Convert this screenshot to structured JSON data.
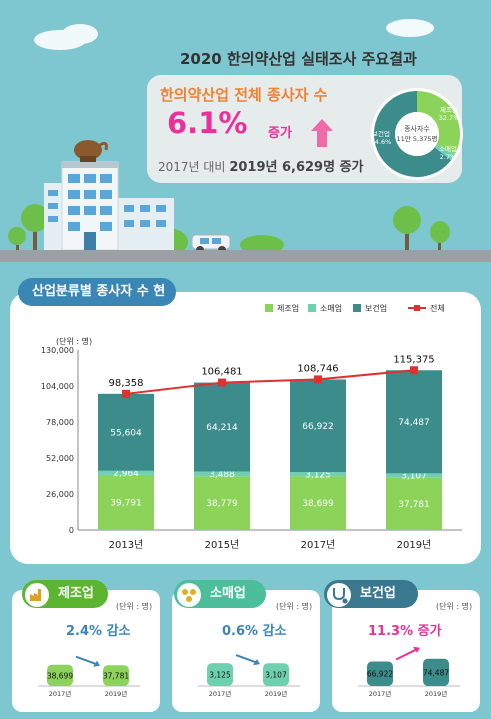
{
  "header": {
    "title": "2020 한의약산업 실태조사 주요결과",
    "headline": "한의약산업 전체 종사자 수",
    "percent": "6.1%",
    "percent_suffix": "증가",
    "note_prefix": "2017년 대비",
    "note_bold": "2019년 6,629명 증가"
  },
  "donut": {
    "center_lines": [
      "종사자수",
      "11만 5,375명"
    ],
    "segments": [
      {
        "name": "제조업",
        "value": 32.7,
        "label": "32.7%",
        "color": "#8cd35a"
      },
      {
        "name": "소매업",
        "value": 2.7,
        "label": "2.7%",
        "color": "#6fd0b0"
      },
      {
        "name": "보건업",
        "value": 64.6,
        "label": "64.6%",
        "color": "#3c8c8c"
      }
    ]
  },
  "section": {
    "title": "산업분류별 종사자 수 현황"
  },
  "chart_data": [
    {
      "type": "bar",
      "stacked": true,
      "title": "산업분류별 종사자 수 현황",
      "unit": "(단위 : 명)",
      "categories": [
        "2013년",
        "2015년",
        "2017년",
        "2019년"
      ],
      "series": [
        {
          "name": "제조업",
          "values": [
            39791,
            38779,
            38699,
            37781
          ],
          "color": "#8cd35a"
        },
        {
          "name": "소매업",
          "values": [
            2964,
            3488,
            3125,
            3107
          ],
          "color": "#6fd0b0"
        },
        {
          "name": "보건업",
          "values": [
            55604,
            64214,
            66922,
            74487
          ],
          "color": "#3c8c8c"
        }
      ],
      "line": {
        "name": "전체",
        "values": [
          98358,
          106481,
          108746,
          115375
        ],
        "labels": [
          "98,358",
          "106,481",
          "108,746",
          "115,375"
        ],
        "color": "#e03030"
      },
      "value_labels": {
        "제조업": [
          "39,791",
          "38,779",
          "38,699",
          "37,781"
        ],
        "소매업": [
          "2,964",
          "3,488",
          "3,125",
          "3,107"
        ],
        "보건업": [
          "55,604",
          "64,214",
          "66,922",
          "74,487"
        ]
      },
      "ylim": [
        0,
        130000
      ],
      "yticks": [
        0,
        26000,
        52000,
        78000,
        104000,
        130000
      ],
      "ytick_labels": [
        "0",
        "26,000",
        "52,000",
        "78,000",
        "104,000",
        "130,000"
      ],
      "legend": [
        "제조업",
        "소매업",
        "보건업",
        "전체"
      ],
      "legend_position": "top-right"
    },
    {
      "type": "bar",
      "title": "제조업",
      "unit": "(단위 : 명)",
      "change": "2.4% 감소",
      "categories": [
        "2017년",
        "2019년"
      ],
      "values": [
        38699,
        37781
      ],
      "labels": [
        "38,699",
        "37,781"
      ],
      "color": "#8cd35a",
      "ylim": [
        0,
        80000
      ]
    },
    {
      "type": "bar",
      "title": "소매업",
      "unit": "(단위 : 명)",
      "change": "0.6% 감소",
      "categories": [
        "2017년",
        "2019년"
      ],
      "values": [
        3125,
        3107
      ],
      "labels": [
        "3,125",
        "3,107"
      ],
      "color": "#6fd0b0",
      "ylim": [
        0,
        6000
      ]
    },
    {
      "type": "bar",
      "title": "보건업",
      "unit": "(단위 : 명)",
      "change": "11.3% 증가",
      "categories": [
        "2017년",
        "2019년"
      ],
      "values": [
        66922,
        74487
      ],
      "labels": [
        "66,922",
        "74,487"
      ],
      "color": "#3c8c8c",
      "ylim": [
        0,
        120000
      ]
    }
  ],
  "cards": [
    {
      "tag": "제조업",
      "tag_color": "#5cb531",
      "change_color": "#3a86b5"
    },
    {
      "tag": "소매업",
      "tag_color": "#4cbf9a",
      "change_color": "#3a86b5"
    },
    {
      "tag": "보건업",
      "tag_color": "#3a7890",
      "change_color": "#e8329a"
    }
  ]
}
